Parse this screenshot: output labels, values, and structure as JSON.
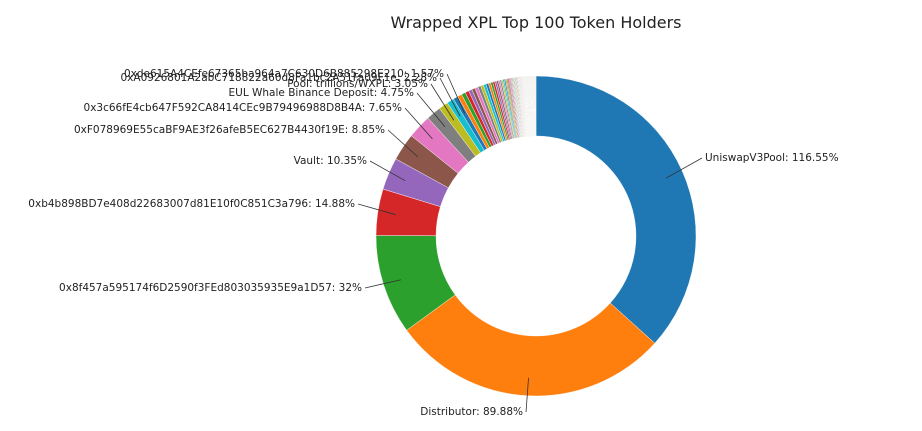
{
  "chart_data": {
    "type": "pie",
    "variant": "donut",
    "title": "Wrapped XPL Top 100 Token Holders",
    "legend": "none",
    "start": "top",
    "direction": "clockwise",
    "slices": [
      {
        "label": "UniswapV3Pool: 116.55%",
        "value": 116.55,
        "color": "#1f77b4"
      },
      {
        "label": "Distributor: 89.88%",
        "value": 89.88,
        "color": "#ff7f0e"
      },
      {
        "label": "0x8f457a595174f6D2590f3FEd803035935E9a1D57: 32%",
        "value": 32,
        "color": "#2ca02c"
      },
      {
        "label": "0xb4b898BD7e408d22683007d81E10f0C851C3a796: 14.88%",
        "value": 14.88,
        "color": "#d62728"
      },
      {
        "label": "Vault: 10.35%",
        "value": 10.35,
        "color": "#9467bd"
      },
      {
        "label": "0xF078969E55caBF9AE3f26afeB5EC627B4430f19E: 8.85%",
        "value": 8.85,
        "color": "#8c564b"
      },
      {
        "label": "0x3c66fE4cb647F592CA8414CEc9B79496988D8B4A: 7.65%",
        "value": 7.65,
        "color": "#e377c2"
      },
      {
        "label": "EUL Whale Binance Deposit: 4.75%",
        "value": 4.75,
        "color": "#7f7f7f"
      },
      {
        "label": "Pool: trillions/WXPL: 3.05%",
        "value": 3.05,
        "color": "#bcbd22"
      },
      {
        "label": "0xA0926801A2abC718822a60d8Fa1bc2A51Fa09F1e: 2.28%",
        "value": 2.28,
        "color": "#17becf"
      },
      {
        "label": "0xde615A4CEfe67365ba964a7C630D6B885298E210: 1.57%",
        "value": 1.57,
        "color": "#1f77b4"
      },
      {
        "label": "",
        "value": 1.4,
        "color": "#ff7f0e"
      },
      {
        "label": "",
        "value": 1.3,
        "color": "#2ca02c"
      },
      {
        "label": "",
        "value": 1.2,
        "color": "#d62728"
      },
      {
        "label": "",
        "value": 1.1,
        "color": "#9467bd"
      },
      {
        "label": "",
        "value": 1.05,
        "color": "#8c564b"
      },
      {
        "label": "",
        "value": 1.0,
        "color": "#e377c2"
      },
      {
        "label": "",
        "value": 0.95,
        "color": "#7f7f7f"
      },
      {
        "label": "",
        "value": 0.9,
        "color": "#bcbd22"
      },
      {
        "label": "",
        "value": 0.85,
        "color": "#17becf"
      },
      {
        "label": "",
        "value": 0.8,
        "color": "#1f77b4"
      },
      {
        "label": "",
        "value": 0.75,
        "color": "#ff7f0e"
      },
      {
        "label": "",
        "value": 0.7,
        "color": "#2ca02c"
      },
      {
        "label": "",
        "value": 0.65,
        "color": "#d62728"
      },
      {
        "label": "",
        "value": 0.6,
        "color": "#9467bd"
      },
      {
        "label": "",
        "value": 0.55,
        "color": "#8c564b"
      },
      {
        "label": "",
        "value": 0.5,
        "color": "#e377c2"
      },
      {
        "label": "",
        "value": 0.5,
        "color": "#7f7f7f"
      },
      {
        "label": "",
        "value": 0.45,
        "color": "#bcbd22"
      },
      {
        "label": "",
        "value": 0.45,
        "color": "#17becf"
      },
      {
        "label": "",
        "value": 0.4,
        "color": "#1f77b4"
      },
      {
        "label": "",
        "value": 0.4,
        "color": "#ff7f0e"
      },
      {
        "label": "",
        "value": 0.35,
        "color": "#2ca02c"
      },
      {
        "label": "",
        "value": 0.35,
        "color": "#d62728"
      },
      {
        "label": "",
        "value": 0.3,
        "color": "#9467bd"
      },
      {
        "label": "",
        "value": 0.3,
        "color": "#8c564b"
      },
      {
        "label": "",
        "value": 0.3,
        "color": "#e377c2"
      },
      {
        "label": "",
        "value": 0.25,
        "color": "#7f7f7f"
      },
      {
        "label": "",
        "value": 0.25,
        "color": "#bcbd22"
      },
      {
        "label": "",
        "value": 0.25,
        "color": "#17becf"
      },
      {
        "label": "",
        "value": 0.2,
        "color": "#1f77b4"
      },
      {
        "label": "",
        "value": 0.2,
        "color": "#ff7f0e"
      },
      {
        "label": "",
        "value": 0.2,
        "color": "#2ca02c"
      },
      {
        "label": "",
        "value": 0.2,
        "color": "#d62728"
      },
      {
        "label": "",
        "value": 0.18,
        "color": "#9467bd"
      },
      {
        "label": "",
        "value": 0.18,
        "color": "#8c564b"
      },
      {
        "label": "",
        "value": 0.16,
        "color": "#e377c2"
      },
      {
        "label": "",
        "value": 0.16,
        "color": "#7f7f7f"
      },
      {
        "label": "",
        "value": 0.15,
        "color": "#bcbd22"
      },
      {
        "label": "",
        "value": 0.15,
        "color": "#17becf"
      },
      {
        "label": "",
        "value": 0.14,
        "color": "#1f77b4"
      },
      {
        "label": "",
        "value": 0.14,
        "color": "#ff7f0e"
      },
      {
        "label": "",
        "value": 0.13,
        "color": "#2ca02c"
      },
      {
        "label": "",
        "value": 0.13,
        "color": "#d62728"
      },
      {
        "label": "",
        "value": 0.12,
        "color": "#9467bd"
      },
      {
        "label": "",
        "value": 0.12,
        "color": "#8c564b"
      },
      {
        "label": "",
        "value": 0.12,
        "color": "#e377c2"
      },
      {
        "label": "",
        "value": 0.11,
        "color": "#7f7f7f"
      },
      {
        "label": "",
        "value": 0.11,
        "color": "#bcbd22"
      },
      {
        "label": "",
        "value": 0.11,
        "color": "#17becf"
      },
      {
        "label": "",
        "value": 0.1,
        "color": "#1f77b4"
      },
      {
        "label": "",
        "value": 0.1,
        "color": "#ff7f0e"
      },
      {
        "label": "",
        "value": 0.1,
        "color": "#2ca02c"
      },
      {
        "label": "",
        "value": 0.1,
        "color": "#d62728"
      },
      {
        "label": "",
        "value": 0.1,
        "color": "#9467bd"
      },
      {
        "label": "",
        "value": 0.1,
        "color": "#8c564b"
      },
      {
        "label": "",
        "value": 0.1,
        "color": "#e377c2"
      },
      {
        "label": "",
        "value": 0.1,
        "color": "#7f7f7f"
      },
      {
        "label": "",
        "value": 0.1,
        "color": "#bcbd22"
      },
      {
        "label": "",
        "value": 0.1,
        "color": "#17becf"
      },
      {
        "label": "",
        "value": 0.1,
        "color": "#1f77b4"
      },
      {
        "label": "",
        "value": 0.1,
        "color": "#ff7f0e"
      },
      {
        "label": "",
        "value": 0.1,
        "color": "#2ca02c"
      },
      {
        "label": "",
        "value": 0.1,
        "color": "#d62728"
      },
      {
        "label": "",
        "value": 0.1,
        "color": "#9467bd"
      },
      {
        "label": "",
        "value": 0.1,
        "color": "#8c564b"
      },
      {
        "label": "",
        "value": 0.1,
        "color": "#e377c2"
      },
      {
        "label": "",
        "value": 0.1,
        "color": "#7f7f7f"
      },
      {
        "label": "",
        "value": 0.1,
        "color": "#bcbd22"
      },
      {
        "label": "",
        "value": 0.1,
        "color": "#17becf"
      },
      {
        "label": "",
        "value": 0.1,
        "color": "#1f77b4"
      },
      {
        "label": "",
        "value": 0.1,
        "color": "#ff7f0e"
      },
      {
        "label": "",
        "value": 0.1,
        "color": "#2ca02c"
      },
      {
        "label": "",
        "value": 0.1,
        "color": "#d62728"
      },
      {
        "label": "",
        "value": 0.1,
        "color": "#9467bd"
      },
      {
        "label": "",
        "value": 0.1,
        "color": "#8c564b"
      },
      {
        "label": "",
        "value": 0.1,
        "color": "#e377c2"
      },
      {
        "label": "",
        "value": 0.1,
        "color": "#7f7f7f"
      },
      {
        "label": "",
        "value": 0.1,
        "color": "#bcbd22"
      },
      {
        "label": "",
        "value": 0.1,
        "color": "#17becf"
      },
      {
        "label": "",
        "value": 0.1,
        "color": "#1f77b4"
      },
      {
        "label": "",
        "value": 0.1,
        "color": "#ff7f0e"
      },
      {
        "label": "",
        "value": 0.1,
        "color": "#2ca02c"
      },
      {
        "label": "",
        "value": 0.1,
        "color": "#d62728"
      },
      {
        "label": "",
        "value": 0.1,
        "color": "#9467bd"
      },
      {
        "label": "",
        "value": 0.1,
        "color": "#8c564b"
      },
      {
        "label": "",
        "value": 0.1,
        "color": "#e377c2"
      },
      {
        "label": "",
        "value": 0.1,
        "color": "#7f7f7f"
      },
      {
        "label": "",
        "value": 0.1,
        "color": "#bcbd22"
      },
      {
        "label": "",
        "value": 0.1,
        "color": "#17becf"
      }
    ]
  }
}
